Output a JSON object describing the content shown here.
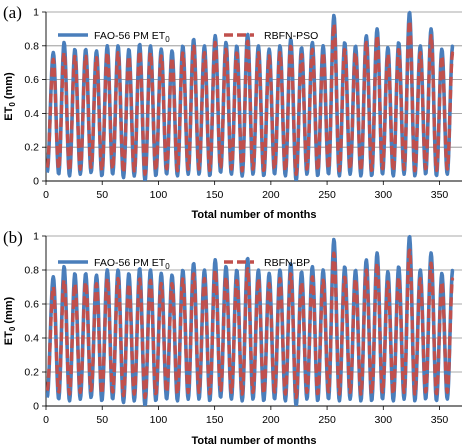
{
  "chart_data": [
    {
      "panel_label": "(a)",
      "type": "line",
      "xlabel": "Total number of months",
      "ylabel": "ET",
      "ylabel_sub": "0",
      "ylabel_unit": " (mm)",
      "xlim": [
        0,
        370
      ],
      "ylim": [
        0,
        1
      ],
      "xticks": [
        "0",
        "50",
        "100",
        "150",
        "200",
        "250",
        "300",
        "350"
      ],
      "yticks": [
        "0",
        "0.2",
        "0.4",
        "0.6",
        "0.8",
        "1"
      ],
      "legend_position": "top",
      "grid": "horizontal",
      "series": [
        {
          "name": "FAO-56 PM ET",
          "name_sub": "0",
          "color": "#4a7ebb",
          "dash": "solid",
          "peaks": [
            0.76,
            0.82,
            0.78,
            0.78,
            0.77,
            0.8,
            0.8,
            0.78,
            0.81,
            0.8,
            0.78,
            0.77,
            0.8,
            0.84,
            0.8,
            0.86,
            0.82,
            0.8,
            0.87,
            0.8,
            0.78,
            0.8,
            0.84,
            0.79,
            0.82,
            0.8,
            0.98,
            0.82,
            0.8,
            0.86,
            0.9,
            0.79,
            0.82,
            1.0,
            0.8,
            0.9,
            0.78,
            0.8
          ],
          "troughs": [
            0.03,
            0.04,
            0.03,
            0.04,
            0.05,
            0.03,
            0.04,
            0.02,
            0.03,
            0.0,
            0.03,
            0.04,
            0.03,
            0.04,
            0.04,
            0.03,
            0.05,
            0.04,
            0.03,
            0.04,
            0.03,
            0.04,
            0.03,
            0.0,
            0.04,
            0.03,
            0.04,
            0.03,
            0.04,
            0.03,
            0.03,
            0.04,
            0.03,
            0.04,
            0.03,
            0.04,
            0.03,
            0.04
          ]
        },
        {
          "name": "RBFN-PSO",
          "color": "#c0504d",
          "dash": "dashed",
          "peaks": [
            0.72,
            0.76,
            0.74,
            0.74,
            0.73,
            0.76,
            0.76,
            0.74,
            0.77,
            0.76,
            0.74,
            0.73,
            0.76,
            0.8,
            0.76,
            0.82,
            0.78,
            0.76,
            0.83,
            0.76,
            0.74,
            0.76,
            0.8,
            0.75,
            0.78,
            0.76,
            0.93,
            0.78,
            0.76,
            0.82,
            0.86,
            0.75,
            0.78,
            0.95,
            0.76,
            0.86,
            0.74,
            0.76
          ],
          "troughs": [
            0.06,
            0.07,
            0.06,
            0.07,
            0.08,
            0.06,
            0.07,
            0.05,
            0.06,
            0.04,
            0.06,
            0.07,
            0.06,
            0.07,
            0.07,
            0.06,
            0.08,
            0.07,
            0.06,
            0.07,
            0.06,
            0.07,
            0.06,
            0.04,
            0.07,
            0.06,
            0.07,
            0.06,
            0.07,
            0.06,
            0.06,
            0.07,
            0.06,
            0.07,
            0.06,
            0.07,
            0.06,
            0.07
          ]
        }
      ]
    },
    {
      "panel_label": "(b)",
      "type": "line",
      "xlabel": "Total number of months",
      "ylabel": "ET",
      "ylabel_sub": "0",
      "ylabel_unit": " (mm)",
      "xlim": [
        0,
        370
      ],
      "ylim": [
        0,
        1
      ],
      "xticks": [
        "0",
        "50",
        "100",
        "150",
        "200",
        "250",
        "300",
        "350"
      ],
      "yticks": [
        "0",
        "0.2",
        "0.4",
        "0.6",
        "0.8",
        "1"
      ],
      "legend_position": "top",
      "grid": "horizontal",
      "series": [
        {
          "name": "FAO-56 PM ET",
          "name_sub": "0",
          "color": "#4a7ebb",
          "dash": "solid",
          "peaks": [
            0.76,
            0.82,
            0.78,
            0.78,
            0.77,
            0.8,
            0.8,
            0.78,
            0.81,
            0.8,
            0.78,
            0.77,
            0.8,
            0.84,
            0.8,
            0.86,
            0.82,
            0.8,
            0.87,
            0.8,
            0.78,
            0.8,
            0.84,
            0.79,
            0.82,
            0.8,
            0.98,
            0.82,
            0.8,
            0.86,
            0.9,
            0.79,
            0.82,
            1.0,
            0.8,
            0.9,
            0.78,
            0.8
          ],
          "troughs": [
            0.03,
            0.04,
            0.03,
            0.04,
            0.05,
            0.03,
            0.04,
            0.02,
            0.03,
            0.0,
            0.03,
            0.04,
            0.03,
            0.04,
            0.04,
            0.03,
            0.05,
            0.04,
            0.03,
            0.04,
            0.03,
            0.04,
            0.03,
            0.0,
            0.04,
            0.03,
            0.04,
            0.03,
            0.04,
            0.03,
            0.03,
            0.04,
            0.03,
            0.04,
            0.03,
            0.04,
            0.03,
            0.04
          ]
        },
        {
          "name": "RBFN-BP",
          "color": "#c0504d",
          "dash": "dashed",
          "peaks": [
            0.7,
            0.74,
            0.72,
            0.73,
            0.72,
            0.75,
            0.75,
            0.72,
            0.75,
            0.74,
            0.72,
            0.72,
            0.75,
            0.78,
            0.75,
            0.8,
            0.76,
            0.74,
            0.81,
            0.75,
            0.72,
            0.75,
            0.78,
            0.73,
            0.76,
            0.74,
            0.9,
            0.76,
            0.75,
            0.8,
            0.84,
            0.73,
            0.76,
            0.92,
            0.75,
            0.84,
            0.73,
            0.75
          ],
          "troughs": [
            0.07,
            0.08,
            0.07,
            0.08,
            0.09,
            0.07,
            0.08,
            0.06,
            0.07,
            0.05,
            0.07,
            0.08,
            0.07,
            0.08,
            0.08,
            0.07,
            0.09,
            0.08,
            0.07,
            0.08,
            0.07,
            0.08,
            0.07,
            0.05,
            0.08,
            0.07,
            0.08,
            0.07,
            0.08,
            0.07,
            0.07,
            0.08,
            0.07,
            0.08,
            0.07,
            0.08,
            0.07,
            0.08
          ]
        }
      ]
    }
  ]
}
